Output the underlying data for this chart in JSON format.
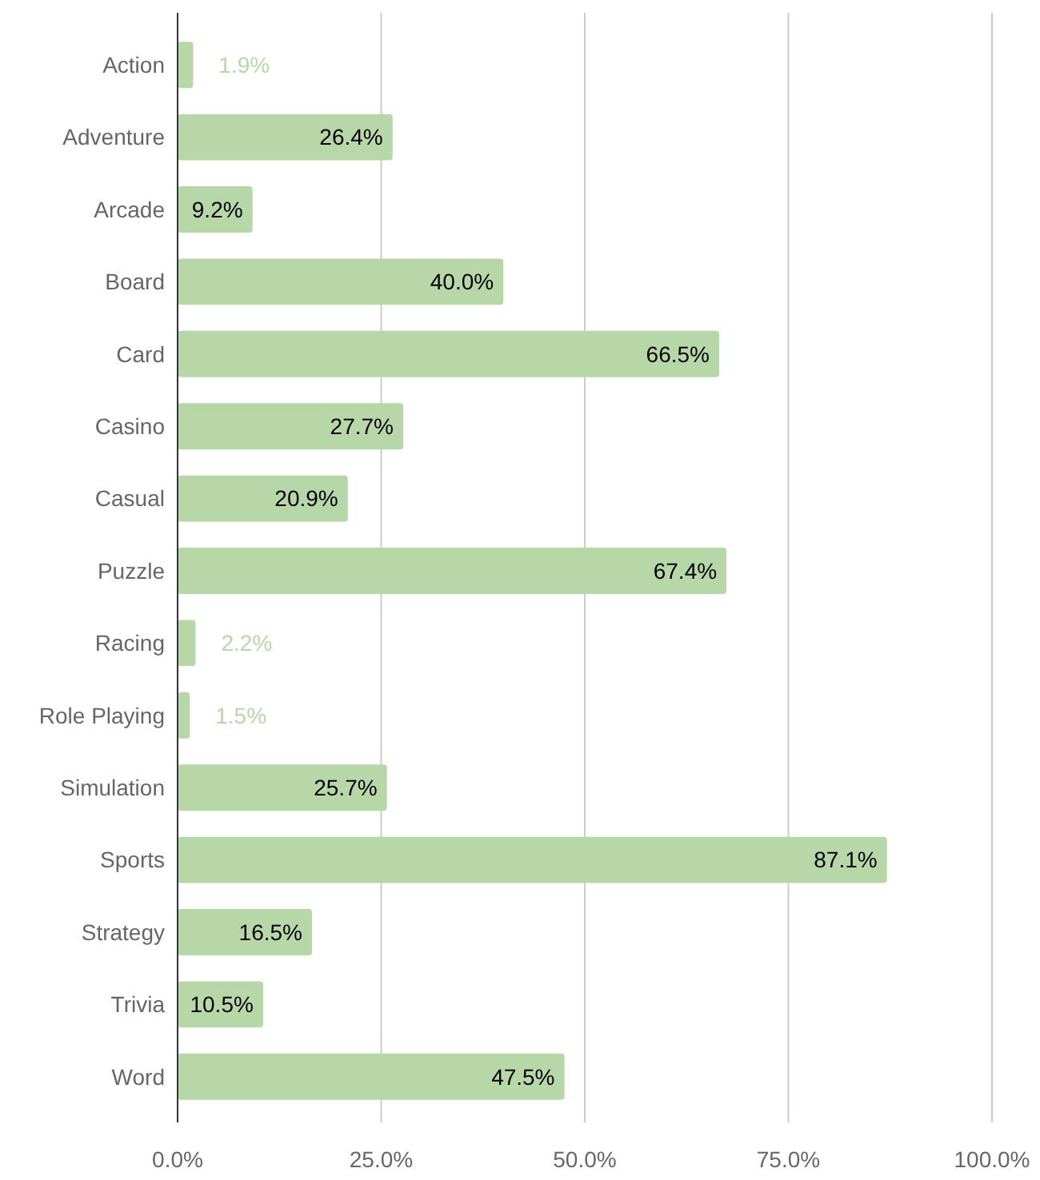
{
  "chart_data": {
    "type": "bar",
    "orientation": "horizontal",
    "categories": [
      "Action",
      "Adventure",
      "Arcade",
      "Board",
      "Card",
      "Casino",
      "Casual",
      "Puzzle",
      "Racing",
      "Role Playing",
      "Simulation",
      "Sports",
      "Strategy",
      "Trivia",
      "Word"
    ],
    "values": [
      1.9,
      26.4,
      9.2,
      40.0,
      66.5,
      27.7,
      20.9,
      67.4,
      2.2,
      1.5,
      25.7,
      87.1,
      16.5,
      10.5,
      47.5
    ],
    "value_labels": [
      "1.9%",
      "26.4%",
      "9.2%",
      "40.0%",
      "66.5%",
      "27.7%",
      "20.9%",
      "67.4%",
      "2.2%",
      "1.5%",
      "25.7%",
      "87.1%",
      "16.5%",
      "10.5%",
      "47.5%"
    ],
    "color": "#b7d7a8",
    "xlim": [
      0,
      100
    ],
    "xticks": [
      {
        "value": 0,
        "label": "0.0%"
      },
      {
        "value": 25,
        "label": "25.0%"
      },
      {
        "value": 50,
        "label": "50.0%"
      },
      {
        "value": 75,
        "label": "75.0%"
      },
      {
        "value": 100,
        "label": "100.0%"
      }
    ],
    "grid": "x"
  }
}
